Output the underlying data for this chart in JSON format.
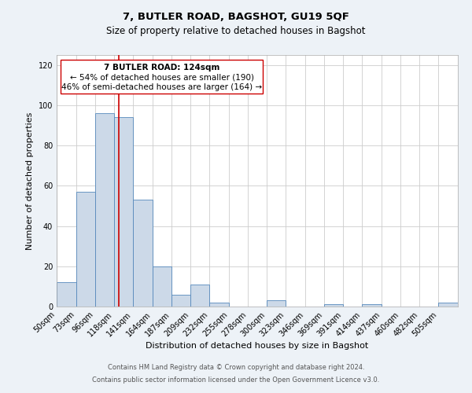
{
  "title": "7, BUTLER ROAD, BAGSHOT, GU19 5QF",
  "subtitle": "Size of property relative to detached houses in Bagshot",
  "xlabel": "Distribution of detached houses by size in Bagshot",
  "ylabel": "Number of detached properties",
  "footer_line1": "Contains HM Land Registry data © Crown copyright and database right 2024.",
  "footer_line2": "Contains public sector information licensed under the Open Government Licence v3.0.",
  "bin_labels": [
    "50sqm",
    "73sqm",
    "96sqm",
    "118sqm",
    "141sqm",
    "164sqm",
    "187sqm",
    "209sqm",
    "232sqm",
    "255sqm",
    "278sqm",
    "300sqm",
    "323sqm",
    "346sqm",
    "369sqm",
    "391sqm",
    "414sqm",
    "437sqm",
    "460sqm",
    "482sqm",
    "505sqm"
  ],
  "bar_heights": [
    12,
    57,
    96,
    94,
    53,
    20,
    6,
    11,
    2,
    0,
    0,
    3,
    0,
    0,
    1,
    0,
    1,
    0,
    0,
    0,
    2
  ],
  "bar_color": "#ccd9e8",
  "bar_edge_color": "#5588bb",
  "ylim": [
    0,
    125
  ],
  "yticks": [
    0,
    20,
    40,
    60,
    80,
    100,
    120
  ],
  "grid_color": "#cccccc",
  "background_color": "#edf2f7",
  "plot_background": "#ffffff",
  "vline_x": 124,
  "vline_color": "#cc0000",
  "annotation_line1": "7 BUTLER ROAD: 124sqm",
  "annotation_line2": "← 54% of detached houses are smaller (190)",
  "annotation_line3": "46% of semi-detached houses are larger (164) →",
  "title_fontsize": 9.5,
  "subtitle_fontsize": 8.5,
  "axis_label_fontsize": 8,
  "tick_fontsize": 7,
  "annotation_fontsize": 7.5,
  "footer_fontsize": 6
}
